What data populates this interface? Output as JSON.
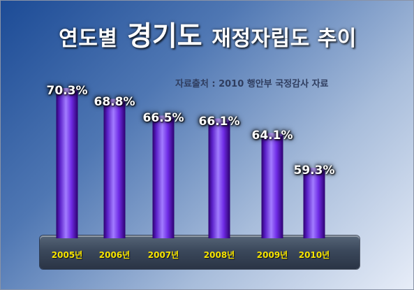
{
  "title": {
    "before": "연도별",
    "highlight": "경기도",
    "after": "재정자립도 추이"
  },
  "source_note": "자료출처 : 2010 행안부 국정감사 자료",
  "colors": {
    "background_top": "#1c4b96",
    "background_bottom": "#e7edf8",
    "bar_light": "#a27cff",
    "bar_main": "#6f2ce6",
    "bar_dark": "#2d006f",
    "category_text": "#f7e400"
  },
  "chart_data": {
    "type": "bar",
    "categories": [
      "2005년",
      "2006년",
      "2007년",
      "2008년",
      "2009년",
      "2010년"
    ],
    "values": [
      70.3,
      68.8,
      66.5,
      66.1,
      64.1,
      59.3
    ],
    "value_labels": [
      "70.3%",
      "68.8%",
      "66.5%",
      "66.1%",
      "64.1%",
      "59.3%"
    ],
    "title": "연도별 경기도 재정자립도 추이",
    "xlabel": "",
    "ylabel": "",
    "grid": false,
    "legend": "none"
  }
}
